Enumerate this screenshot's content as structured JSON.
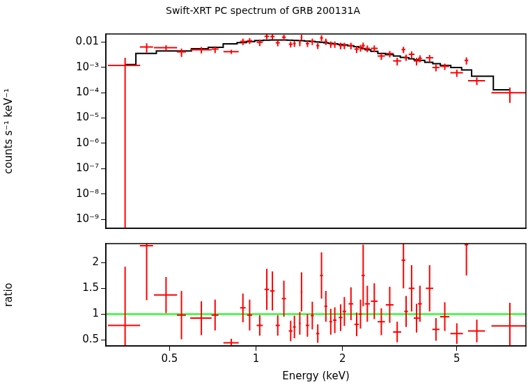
{
  "chart_data": [
    {
      "type": "scatter",
      "title": "Swift-XRT PC spectrum of GRB 200131A",
      "y_label": "counts s⁻¹ keV⁻¹",
      "log": true,
      "grid": false,
      "tick_labels": "y",
      "xlim": [
        0.3,
        8.7
      ],
      "xticks": [
        0.5,
        1,
        2,
        5
      ],
      "ylim": [
        4.4e-10,
        0.021
      ],
      "yticks": [
        {
          "value": 1e-09,
          "label": "10⁻⁹"
        },
        {
          "value": 1e-08,
          "label": "10⁻⁸"
        },
        {
          "value": 1e-07,
          "label": "10⁻⁷"
        },
        {
          "value": 1e-06,
          "label": "10⁻⁶"
        },
        {
          "value": 1e-05,
          "label": "10⁻⁵"
        },
        {
          "value": 0.0001,
          "label": "10⁻⁴"
        },
        {
          "value": 0.001,
          "label": "10⁻³"
        },
        0.01
      ],
      "series": [
        {
          "type": "scatter",
          "color": "#ff0000",
          "marker": "cross",
          "x": [
            0.35,
            0.416,
            0.486,
            0.55,
            0.645,
            0.72,
            0.82,
            0.9,
            0.95,
            1.03,
            1.09,
            1.14,
            1.19,
            1.25,
            1.32,
            1.36,
            1.42,
            1.44,
            1.51,
            1.57,
            1.64,
            1.69,
            1.75,
            1.82,
            1.88,
            1.97,
            2.03,
            2.14,
            2.24,
            2.31,
            2.36,
            2.44,
            2.58,
            2.73,
            2.92,
            3.1,
            3.26,
            3.33,
            3.48,
            3.62,
            3.72,
            4.02,
            4.23,
            4.54,
            5.0,
            5.4,
            5.87,
            7.65
          ],
          "x_err": [
            0.045,
            0.022,
            0.045,
            0.02,
            0.055,
            0.02,
            0.05,
            0.02,
            0.02,
            0.025,
            0.02,
            0.02,
            0.02,
            0.02,
            0.02,
            0.015,
            0.01,
            0.01,
            0.02,
            0.02,
            0.02,
            0.02,
            0.02,
            0.02,
            0.025,
            0.03,
            0.03,
            0.04,
            0.04,
            0.03,
            0.03,
            0.05,
            0.07,
            0.08,
            0.09,
            0.1,
            0.05,
            0.05,
            0.08,
            0.08,
            0.06,
            0.12,
            0.12,
            0.17,
            0.25,
            0.08,
            0.4,
            1.05
          ],
          "values": [
            0.0012,
            0.0064,
            0.006,
            0.0041,
            0.005,
            0.0053,
            0.0042,
            0.0107,
            0.0114,
            0.0098,
            0.0168,
            0.0165,
            0.0094,
            0.0156,
            0.0083,
            0.0088,
            0.0094,
            0.0156,
            0.0088,
            0.0107,
            0.0073,
            0.0146,
            0.0107,
            0.0083,
            0.0083,
            0.0073,
            0.0073,
            0.0073,
            0.0053,
            0.006,
            0.0073,
            0.0057,
            0.0057,
            0.0028,
            0.0035,
            0.0018,
            0.0051,
            0.0025,
            0.0033,
            0.0018,
            0.0023,
            0.0024,
            0.001,
            0.0011,
            0.00062,
            0.0019,
            0.0003,
            0.0001
          ],
          "y_err": [
            0.0012,
            0.0025,
            0.0015,
            0.0015,
            0.0014,
            0.0016,
            0.0008,
            0.003,
            0.003,
            0.0028,
            0.004,
            0.004,
            0.0025,
            0.004,
            0.0022,
            0.0024,
            0.0026,
            0.004,
            0.0024,
            0.003,
            0.002,
            0.004,
            0.003,
            0.0024,
            0.0024,
            0.0021,
            0.0021,
            0.0021,
            0.0016,
            0.0018,
            0.0022,
            0.0017,
            0.0017,
            0.0008,
            0.001,
            0.0006,
            0.0014,
            0.0007,
            0.001,
            0.0006,
            0.0007,
            0.0007,
            0.0003,
            0.0003,
            0.0002,
            0.0006,
            0.0001,
            6e-05
          ]
        },
        {
          "type": "line",
          "line_style": "step",
          "color": "#000000",
          "x": [
            0.35,
            0.416,
            0.486,
            0.55,
            0.645,
            0.72,
            0.82,
            0.9,
            0.95,
            1.03,
            1.09,
            1.14,
            1.19,
            1.25,
            1.32,
            1.36,
            1.42,
            1.44,
            1.51,
            1.57,
            1.64,
            1.69,
            1.75,
            1.82,
            1.88,
            1.97,
            2.03,
            2.14,
            2.24,
            2.31,
            2.36,
            2.44,
            2.58,
            2.73,
            2.92,
            3.1,
            3.26,
            3.33,
            3.48,
            3.62,
            3.72,
            4.02,
            4.23,
            4.54,
            5.0,
            5.4,
            5.87,
            7.65
          ],
          "values": [
            0.0013,
            0.0036,
            0.0045,
            0.0045,
            0.0055,
            0.0062,
            0.0085,
            0.0095,
            0.0105,
            0.0115,
            0.012,
            0.0122,
            0.0122,
            0.0122,
            0.012,
            0.0118,
            0.0115,
            0.0113,
            0.011,
            0.0106,
            0.0102,
            0.0098,
            0.0094,
            0.009,
            0.0086,
            0.0082,
            0.0078,
            0.0072,
            0.0066,
            0.0062,
            0.0055,
            0.005,
            0.0043,
            0.0036,
            0.0032,
            0.0028,
            0.0025,
            0.0024,
            0.0022,
            0.002,
            0.0019,
            0.0016,
            0.0014,
            0.0012,
            0.001,
            0.0008,
            0.00045,
            0.00013
          ]
        }
      ]
    },
    {
      "type": "scatter",
      "x_label": "Energy (keV)",
      "y_label": "ratio",
      "log": "x",
      "grid": false,
      "xlim": [
        0.3,
        8.7
      ],
      "xticks": [
        0.5,
        1,
        2,
        5
      ],
      "ylim": [
        0.38,
        2.37
      ],
      "yticks": [
        0.5,
        1,
        1.5,
        2
      ],
      "series": [
        {
          "type": "line",
          "color": "#00ff00",
          "x": [
            0.3,
            8.7
          ],
          "values": [
            1,
            1
          ]
        },
        {
          "type": "scatter",
          "color": "#ff0000",
          "marker": "cross",
          "x": [
            0.35,
            0.416,
            0.486,
            0.55,
            0.645,
            0.72,
            0.82,
            0.9,
            0.95,
            1.03,
            1.09,
            1.14,
            1.19,
            1.25,
            1.32,
            1.36,
            1.42,
            1.44,
            1.51,
            1.57,
            1.64,
            1.69,
            1.75,
            1.82,
            1.88,
            1.97,
            2.03,
            2.14,
            2.24,
            2.31,
            2.36,
            2.44,
            2.58,
            2.73,
            2.92,
            3.1,
            3.26,
            3.33,
            3.48,
            3.62,
            3.72,
            4.02,
            4.23,
            4.54,
            5.0,
            5.4,
            5.87,
            7.65
          ],
          "x_err": [
            0.045,
            0.022,
            0.045,
            0.02,
            0.055,
            0.02,
            0.05,
            0.02,
            0.02,
            0.025,
            0.02,
            0.02,
            0.02,
            0.02,
            0.02,
            0.015,
            0.01,
            0.01,
            0.02,
            0.02,
            0.02,
            0.02,
            0.02,
            0.02,
            0.025,
            0.03,
            0.03,
            0.04,
            0.04,
            0.03,
            0.03,
            0.05,
            0.07,
            0.08,
            0.09,
            0.1,
            0.05,
            0.05,
            0.08,
            0.08,
            0.06,
            0.12,
            0.12,
            0.17,
            0.25,
            0.08,
            0.4,
            1.05
          ],
          "values": [
            0.78,
            2.33,
            1.37,
            0.98,
            0.92,
            0.98,
            0.44,
            1.12,
            0.98,
            0.78,
            1.48,
            1.45,
            0.78,
            1.3,
            0.67,
            0.75,
            0.82,
            1.43,
            0.78,
            0.97,
            0.62,
            1.75,
            1.15,
            0.85,
            0.88,
            0.93,
            1.05,
            1.2,
            0.8,
            1.0,
            1.75,
            1.2,
            1.25,
            0.85,
            1.18,
            0.65,
            2.05,
            1.05,
            1.5,
            0.92,
            1.2,
            1.5,
            0.7,
            0.95,
            0.62,
            2.35,
            0.67,
            0.77
          ],
          "y_err": [
            1.14,
            1.06,
            0.35,
            0.47,
            0.33,
            0.3,
            0.08,
            0.28,
            0.3,
            0.2,
            0.4,
            0.38,
            0.2,
            0.35,
            0.2,
            0.22,
            0.22,
            0.38,
            0.22,
            0.27,
            0.18,
            0.45,
            0.3,
            0.25,
            0.25,
            0.26,
            0.28,
            0.32,
            0.23,
            0.28,
            0.6,
            0.35,
            0.35,
            0.26,
            0.35,
            0.2,
            0.55,
            0.3,
            0.45,
            0.28,
            0.35,
            0.45,
            0.22,
            0.28,
            0.2,
            0.6,
            0.22,
            0.45
          ]
        }
      ]
    }
  ]
}
